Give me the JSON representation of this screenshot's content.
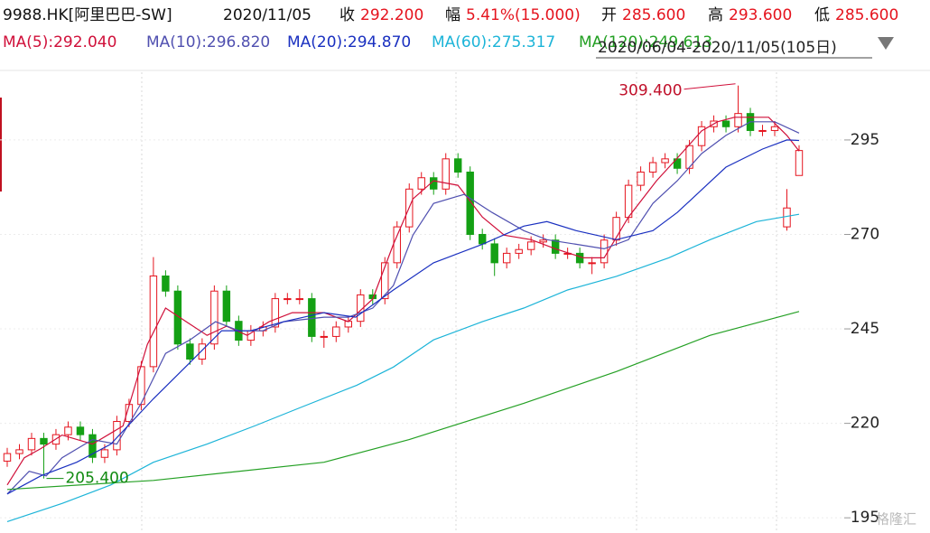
{
  "chart_data": {
    "type": "candlestick",
    "header": {
      "symbol": "9988.HK[阿里巴巴-SW]",
      "date": "2020/11/05",
      "close_label": "收",
      "close": "292.200",
      "change_label": "幅",
      "change": "5.41%(15.000)",
      "open_label": "开",
      "open": "285.600",
      "high_label": "高",
      "high": "293.600",
      "low_label": "低",
      "low": "285.600"
    },
    "range_label": "2020/06/04-2020/11/05(105日)",
    "up_color": "#e5141e",
    "down_color": "#14a014",
    "candles": {
      "open": [
        210,
        212,
        213,
        216,
        214.5,
        217,
        219,
        217,
        211,
        213,
        220.5,
        225,
        235,
        259,
        255,
        241,
        237,
        241,
        255,
        247,
        242,
        244.5,
        245.5,
        253,
        253,
        253,
        243,
        243,
        245.5,
        247,
        254,
        253,
        262.5,
        272,
        282,
        285,
        282,
        290,
        286.5,
        270,
        267.5,
        262.5,
        265,
        266,
        268,
        268.5,
        265,
        265,
        262.5,
        262.5,
        268.5,
        274.5,
        283,
        286.5,
        289,
        290,
        287.5,
        293.5,
        298.5,
        300,
        298.5,
        302,
        297.5,
        297.5,
        272,
        285.6
      ],
      "high": [
        213.5,
        214.5,
        217.5,
        217.5,
        218.5,
        220.5,
        220.5,
        218.5,
        214.5,
        222,
        226.5,
        236.5,
        264,
        260.5,
        256.5,
        242.5,
        242.5,
        256.5,
        256.5,
        248.5,
        246,
        247,
        254.5,
        254.5,
        255.5,
        254.5,
        244.5,
        247,
        248.5,
        255.5,
        255.5,
        264,
        273.5,
        283.5,
        286.5,
        286.5,
        291.5,
        291.5,
        288,
        271.5,
        269,
        266.5,
        267.5,
        269.5,
        270,
        270,
        266.5,
        266.5,
        264,
        270,
        276,
        284.5,
        288,
        290.5,
        291.5,
        291.5,
        295,
        300,
        301.5,
        301.5,
        309.4,
        303.5,
        299,
        300,
        282,
        293.6
      ],
      "low": [
        208.5,
        210.5,
        211.5,
        205.4,
        213,
        215.5,
        215.5,
        209.5,
        209.5,
        211.5,
        219,
        223.5,
        233.5,
        253.5,
        239.5,
        235.5,
        235.5,
        239.5,
        245.5,
        240.5,
        240.5,
        243,
        244,
        251.5,
        251.5,
        241.5,
        240,
        241.5,
        244,
        245.5,
        251.5,
        251.5,
        261,
        270.5,
        280.5,
        280.5,
        280.5,
        285,
        268.5,
        266,
        259,
        261,
        263.5,
        264.5,
        266.5,
        263.5,
        263.5,
        261,
        259.5,
        261,
        267,
        273,
        281.5,
        285,
        287.5,
        286,
        286,
        292,
        297,
        297,
        297,
        296,
        296,
        296,
        271,
        285.6
      ],
      "close": [
        212,
        213,
        216,
        214.5,
        217,
        219,
        217,
        211,
        213,
        220.5,
        225,
        235,
        259,
        255,
        241,
        237,
        241,
        255,
        247,
        242,
        244.5,
        245.5,
        253,
        253,
        253,
        243,
        243,
        245.5,
        247,
        254,
        253,
        262.5,
        272,
        282,
        285,
        282,
        290,
        286.5,
        270,
        267.5,
        262.5,
        265,
        266,
        268,
        268.5,
        265,
        265,
        262.5,
        262.5,
        268.5,
        274.5,
        283,
        286.5,
        289,
        290,
        287.5,
        293.5,
        298.5,
        300,
        298.5,
        302,
        297.5,
        297.5,
        298.5,
        277,
        292.2
      ]
    },
    "series": [
      {
        "name": "MA(5):292.040",
        "color": "#d0103a",
        "x": [
          0,
          1.4,
          2.75,
          4.5,
          7,
          9.5,
          11.5,
          13,
          14.7,
          16.4,
          18,
          19.7,
          21.5,
          23.4,
          26,
          28,
          30,
          31.7,
          33.3,
          35,
          37,
          39,
          40.8,
          43,
          45,
          47.3,
          49,
          51,
          53.3,
          55,
          57,
          58.3,
          59.7,
          62.5,
          64,
          65
        ],
        "values": [
          203.7,
          210.9,
          213.3,
          216.9,
          214.5,
          219.3,
          240.9,
          250.5,
          246.9,
          243.3,
          245.7,
          243.3,
          246.9,
          249.3,
          249.3,
          246.9,
          252.9,
          267.4,
          279.4,
          284.2,
          283,
          274.6,
          269.8,
          268.6,
          266.2,
          263.8,
          263.8,
          274.6,
          284.2,
          290.2,
          297.4,
          299.8,
          301,
          301,
          296.2,
          292.04
        ]
      },
      {
        "name": "MA(10):296.820",
        "color": "#5050b0",
        "x": [
          0,
          1.8,
          3.2,
          4.5,
          7,
          9,
          11,
          13,
          15,
          17.1,
          19,
          21,
          22.7,
          26,
          28,
          30,
          31.7,
          33.3,
          35,
          37.5,
          39.8,
          42.4,
          44.3,
          46.7,
          49,
          51,
          53,
          55,
          57,
          59,
          61,
          63,
          65
        ],
        "values": [
          201.3,
          207.3,
          206.1,
          210.9,
          215.7,
          214.5,
          225.3,
          238.5,
          242.1,
          246.9,
          244.5,
          244.5,
          246.9,
          248.1,
          248.1,
          250.5,
          256.5,
          269.8,
          278.2,
          280.6,
          275.8,
          271,
          268.6,
          267.4,
          266.2,
          268.6,
          278.2,
          284.2,
          291.4,
          296.2,
          299.8,
          299.8,
          296.82
        ]
      },
      {
        "name": "MA(20):294.870",
        "color": "#1a30c0",
        "x": [
          0,
          2.75,
          5.7,
          8.5,
          12,
          15,
          17.6,
          20,
          22.7,
          26,
          28.6,
          31.7,
          35,
          39,
          42.4,
          44.3,
          46.7,
          50,
          53,
          55,
          57,
          59,
          62,
          64,
          65
        ],
        "values": [
          201.3,
          206.1,
          209.7,
          214.5,
          226.5,
          236.1,
          244.5,
          244.5,
          246.9,
          249.3,
          248.1,
          255.3,
          262.5,
          267.4,
          272.2,
          273.4,
          271,
          268.6,
          271,
          275.8,
          281.8,
          287.8,
          292.6,
          295,
          294.87
        ]
      },
      {
        "name": "MA(60):275.317",
        "color": "#1cb4d8",
        "x": [
          0,
          4.5,
          8.5,
          12,
          16.4,
          20.3,
          24,
          28.7,
          31.7,
          35,
          39,
          42.4,
          46,
          50,
          54.3,
          57.7,
          61.5,
          65
        ],
        "values": [
          194,
          198.8,
          203.7,
          209.7,
          214.5,
          219.3,
          224.1,
          230.1,
          234.9,
          242.1,
          246.9,
          250.5,
          255.3,
          258.9,
          263.8,
          268.6,
          273.4,
          275.317
        ]
      },
      {
        "name": "MA(120):249.613",
        "color": "#24a024",
        "x": [
          0,
          12,
          26,
          33,
          42.4,
          50,
          57.7,
          65
        ],
        "values": [
          202.5,
          204.9,
          209.7,
          215.7,
          225.3,
          233.7,
          243.3,
          249.613
        ]
      }
    ],
    "annotations": {
      "high_label": "309.400",
      "low_label": "205.400"
    },
    "watermark": "格隆汇",
    "ylim": [
      190.5,
      311
    ],
    "yticks": [
      195,
      220,
      245,
      270,
      295
    ],
    "grid": true
  }
}
